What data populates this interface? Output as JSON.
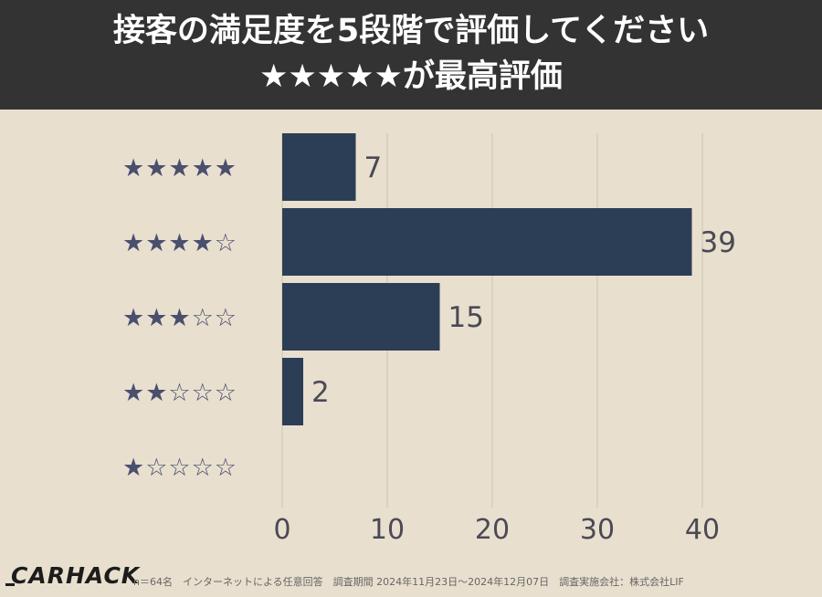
{
  "header": {
    "title_line1": "接客の満足度を5段階で評価してください",
    "title_line2": "★★★★★が最高評価"
  },
  "colors": {
    "bar": "#2c3e55",
    "star": "#4a4f6e",
    "background": "#e8dfce",
    "header_bg": "#333333",
    "grid": "#cdc4b3",
    "value_label": "#4a4a55"
  },
  "chart_data": {
    "type": "bar",
    "orientation": "horizontal",
    "categories": [
      "★★★★★",
      "★★★★☆",
      "★★★☆☆",
      "★★☆☆☆",
      "★☆☆☆☆"
    ],
    "filled_stars": [
      5,
      4,
      3,
      2,
      1
    ],
    "values": [
      7,
      39,
      15,
      2,
      0
    ],
    "data_labels": [
      "7",
      "39",
      "15",
      "2",
      ""
    ],
    "xlim": [
      0,
      40
    ],
    "x_ticks": [
      "0",
      "10",
      "20",
      "30",
      "40"
    ],
    "grid": true,
    "title": "接客の満足度を5段階で評価してください",
    "xlabel": "",
    "ylabel": ""
  },
  "footer": {
    "logo": "CARHACK",
    "note": "n＝64名　インターネットによる任意回答　調査期間 2024年11月23日～2024年12月07日　調査実施会社：株式会社LIF"
  }
}
